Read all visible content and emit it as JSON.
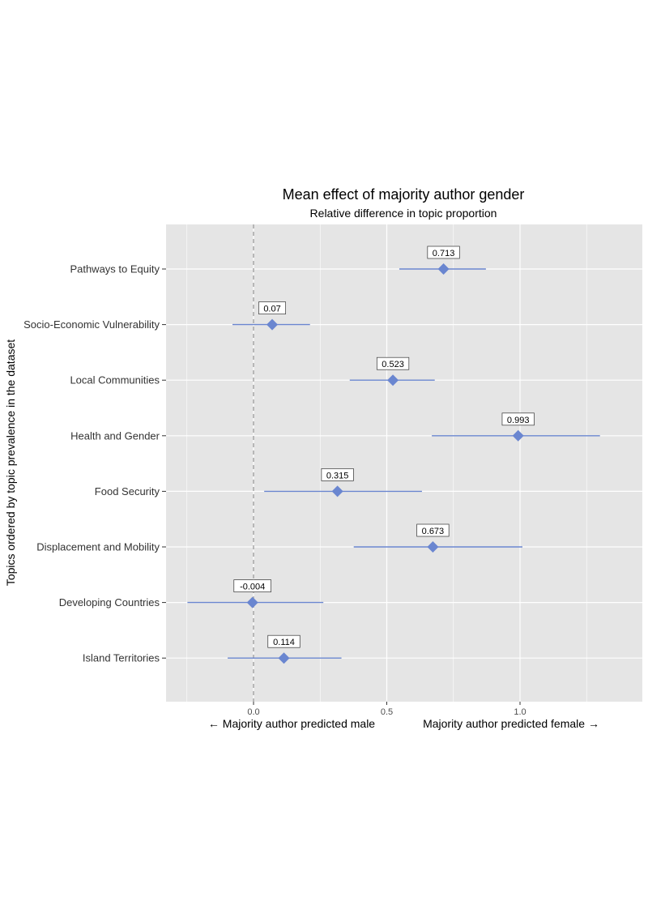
{
  "chart_data": {
    "type": "scatter",
    "title": "Mean effect of majority author gender",
    "subtitle": "Relative difference in topic proportion",
    "xlabel_left": "← Majority author predicted male",
    "xlabel_right": "Majority author predicted female →",
    "ylabel": "Topics ordered by topic prevalence in the dataset",
    "xlim": [
      -0.33,
      1.46
    ],
    "x_ticks": [
      0.0,
      0.5,
      1.0
    ],
    "x_tick_labels": [
      "0.0",
      "0.5",
      "1.0"
    ],
    "reference_line_x": 0,
    "grid": true,
    "points": [
      {
        "topic": "Pathways to Equity",
        "estimate": 0.713,
        "label": "0.713",
        "ci_low": 0.547,
        "ci_high": 0.872
      },
      {
        "topic": "Socio-Economic Vulnerability",
        "estimate": 0.07,
        "label": "0.07",
        "ci_low": -0.079,
        "ci_high": 0.212
      },
      {
        "topic": "Local Communities",
        "estimate": 0.523,
        "label": "0.523",
        "ci_low": 0.361,
        "ci_high": 0.68
      },
      {
        "topic": "Health and Gender",
        "estimate": 0.993,
        "label": "0.993",
        "ci_low": 0.669,
        "ci_high": 1.3
      },
      {
        "topic": "Food Security",
        "estimate": 0.315,
        "label": "0.315",
        "ci_low": 0.04,
        "ci_high": 0.632
      },
      {
        "topic": "Displacement and Mobility",
        "estimate": 0.673,
        "label": "0.673",
        "ci_low": 0.376,
        "ci_high": 1.009
      },
      {
        "topic": "Developing Countries",
        "estimate": -0.004,
        "label": "-0.004",
        "ci_low": -0.248,
        "ci_high": 0.262
      },
      {
        "topic": "Island Territories",
        "estimate": 0.114,
        "label": "0.114",
        "ci_low": -0.097,
        "ci_high": 0.33
      }
    ],
    "colors": {
      "panel": "#e5e5e5",
      "grid": "#ffffff",
      "point": "#6a86d0",
      "reference_line": "#a6a6a6"
    }
  }
}
